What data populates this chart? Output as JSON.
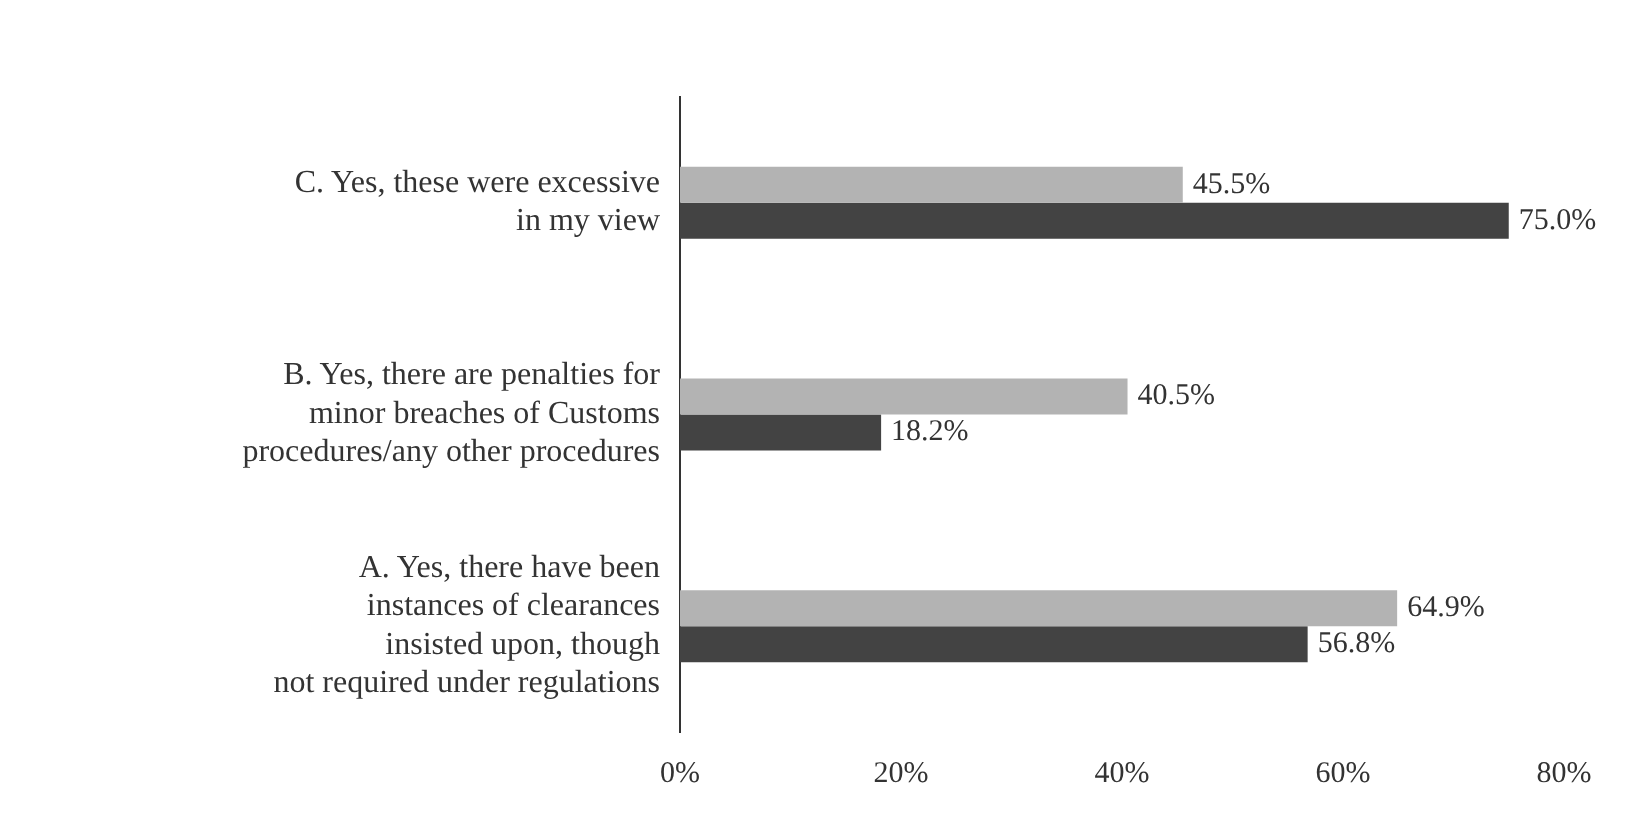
{
  "chart_data": {
    "type": "bar",
    "orientation": "horizontal",
    "categories": [
      "C. Yes, these were excessive\nin my view",
      "B. Yes, there are penalties for\nminor breaches of Customs\nprocedures/any other procedures",
      "A. Yes, there have been\ninstances of clearances\ninsisted upon, though\nnot required under regulations"
    ],
    "series": [
      {
        "color": "#b3b3b3",
        "values": [
          45.5,
          40.5,
          64.9
        ],
        "value_labels": [
          "45.5%",
          "40.5%",
          "64.9%"
        ]
      },
      {
        "color": "#434343",
        "values": [
          75.0,
          18.2,
          56.8
        ],
        "value_labels": [
          "75.0%",
          "18.2%",
          "56.8%"
        ]
      }
    ],
    "xlim": [
      0,
      80
    ],
    "xticks": [
      {
        "value": 0,
        "label": "0%"
      },
      {
        "value": 20,
        "label": "20%"
      },
      {
        "value": 40,
        "label": "40%"
      },
      {
        "value": 60,
        "label": "60%"
      },
      {
        "value": 80,
        "label": "80%"
      }
    ],
    "grid": false,
    "legend": false
  }
}
